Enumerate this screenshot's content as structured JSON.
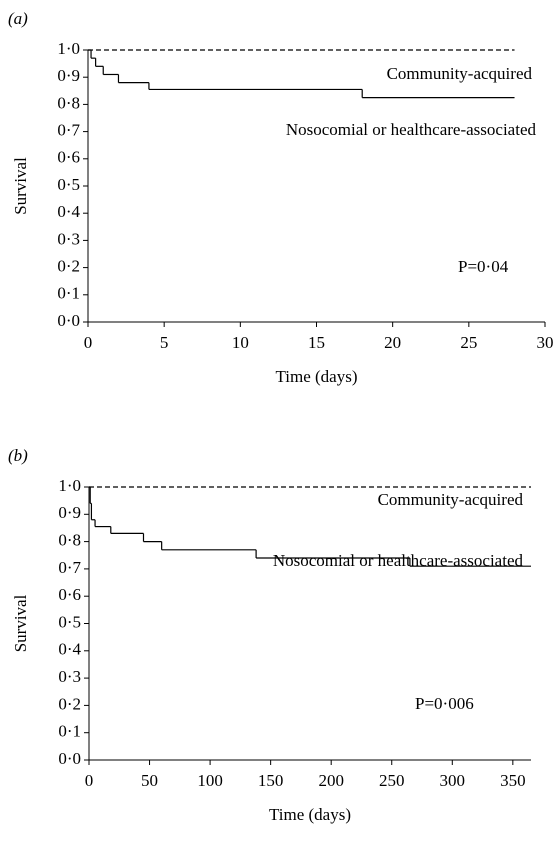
{
  "chart_data": [
    {
      "type": "step",
      "panel": "(a)",
      "xlabel": "Time (days)",
      "ylabel": "Survival",
      "xlim": [
        0,
        30
      ],
      "xticks": [
        0,
        5,
        10,
        15,
        20,
        25,
        30
      ],
      "ylim": [
        0,
        1
      ],
      "yticks": [
        {
          "value": 0,
          "label": "0·0"
        },
        {
          "value": 0.1,
          "label": "0·1"
        },
        {
          "value": 0.2,
          "label": "0·2"
        },
        {
          "value": 0.3,
          "label": "0·3"
        },
        {
          "value": 0.4,
          "label": "0·4"
        },
        {
          "value": 0.5,
          "label": "0·5"
        },
        {
          "value": 0.6,
          "label": "0·6"
        },
        {
          "value": 0.7,
          "label": "0·7"
        },
        {
          "value": 0.8,
          "label": "0·8"
        },
        {
          "value": 0.9,
          "label": "0·9"
        },
        {
          "value": 1,
          "label": "1·0"
        }
      ],
      "series": [
        {
          "name": "Community-acquired",
          "color": "#000000",
          "dashed": true,
          "x": [
            0,
            28
          ],
          "values": [
            1,
            1
          ]
        },
        {
          "name": "Nosocomial or healthcare-associated",
          "color": "#000000",
          "dashed": false,
          "x": [
            0,
            0.2,
            0.5,
            1,
            2,
            4,
            18,
            28
          ],
          "values": [
            1,
            0.97,
            0.94,
            0.91,
            0.88,
            0.855,
            0.825,
            0.825
          ]
        }
      ],
      "annotation": "P=0·04"
    },
    {
      "type": "step",
      "panel": "(b)",
      "xlabel": "Time (days)",
      "ylabel": "Survival",
      "xlim": [
        0,
        365
      ],
      "xticks": [
        0,
        50,
        100,
        150,
        200,
        250,
        300,
        350
      ],
      "ylim": [
        0,
        1
      ],
      "yticks": [
        {
          "value": 0,
          "label": "0·0"
        },
        {
          "value": 0.1,
          "label": "0·1"
        },
        {
          "value": 0.2,
          "label": "0·2"
        },
        {
          "value": 0.3,
          "label": "0·3"
        },
        {
          "value": 0.4,
          "label": "0·4"
        },
        {
          "value": 0.5,
          "label": "0·5"
        },
        {
          "value": 0.6,
          "label": "0·6"
        },
        {
          "value": 0.7,
          "label": "0·7"
        },
        {
          "value": 0.8,
          "label": "0·8"
        },
        {
          "value": 0.9,
          "label": "0·9"
        },
        {
          "value": 1,
          "label": "1·0"
        }
      ],
      "series": [
        {
          "name": "Community-acquired",
          "color": "#000000",
          "dashed": true,
          "x": [
            0,
            365
          ],
          "values": [
            1,
            1
          ]
        },
        {
          "name": "Nosocomial or healthcare-associated",
          "color": "#000000",
          "dashed": false,
          "x": [
            0,
            1,
            2,
            5,
            18,
            45,
            60,
            138,
            265,
            365
          ],
          "values": [
            1,
            0.94,
            0.88,
            0.855,
            0.83,
            0.8,
            0.77,
            0.74,
            0.71,
            0.71
          ]
        }
      ],
      "annotation": "P=0·006"
    }
  ]
}
